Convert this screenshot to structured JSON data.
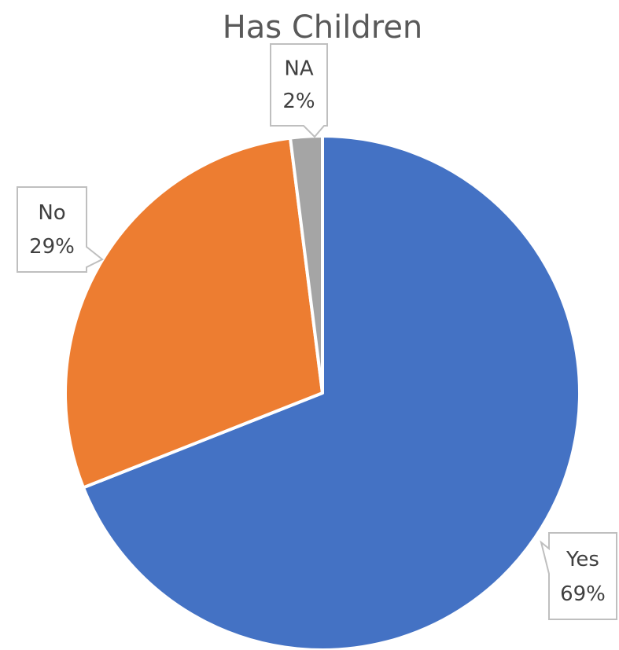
{
  "chart_data": {
    "type": "pie",
    "title": "Has Children",
    "categories": [
      "Yes",
      "No",
      "NA"
    ],
    "values": [
      69,
      29,
      2
    ],
    "value_labels": [
      "69%",
      "29%",
      "2%"
    ],
    "colors": [
      "#4472C4",
      "#ED7D31",
      "#A5A5A5"
    ],
    "legend": "none",
    "data_labels": "callouts"
  }
}
